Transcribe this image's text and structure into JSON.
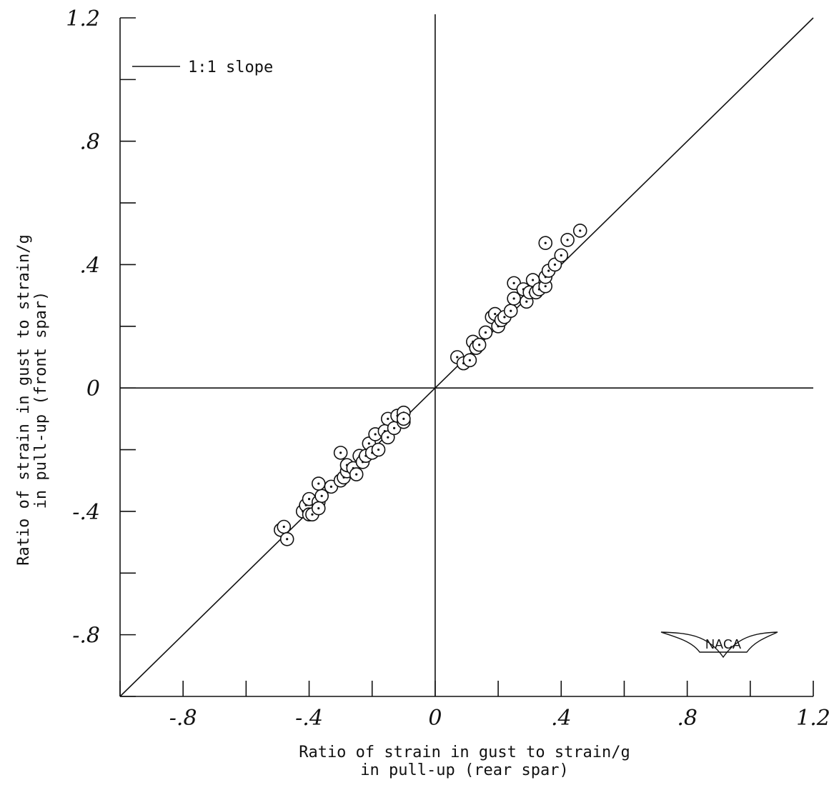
{
  "chart_data": {
    "type": "scatter",
    "title": "",
    "xlabel": [
      "Ratio of strain in gust to strain/g",
      "in pull-up (rear spar)"
    ],
    "ylabel": [
      "Ratio of strain in gust to strain/g",
      "in pull-up (front spar)"
    ],
    "xlim": [
      -1.0,
      1.2
    ],
    "ylim": [
      -1.0,
      1.2
    ],
    "x_ticks": [
      -0.8,
      -0.4,
      0,
      0.4,
      0.8,
      1.2
    ],
    "x_tick_labels": [
      "-.8",
      "-.4",
      "0",
      ".4",
      ".8",
      "1.2"
    ],
    "y_ticks": [
      -0.8,
      -0.4,
      0,
      0.4,
      0.8,
      1.2
    ],
    "y_tick_labels": [
      "-.8",
      "-.4",
      "0",
      ".4",
      ".8",
      "1.2"
    ],
    "minor_tick_step": 0.2,
    "grid": false,
    "reference_line": {
      "label": "1:1 slope",
      "slope": 1,
      "intercept": 0
    },
    "legend": {
      "entries": [
        "1:1 slope"
      ],
      "placement": "top-left"
    },
    "logo_text": "NACA",
    "series": [
      {
        "marker": "circle-with-dot",
        "points": [
          [
            -0.49,
            -0.46
          ],
          [
            -0.48,
            -0.45
          ],
          [
            -0.47,
            -0.49
          ],
          [
            -0.42,
            -0.4
          ],
          [
            -0.41,
            -0.38
          ],
          [
            -0.4,
            -0.36
          ],
          [
            -0.4,
            -0.41
          ],
          [
            -0.39,
            -0.41
          ],
          [
            -0.37,
            -0.37
          ],
          [
            -0.36,
            -0.35
          ],
          [
            -0.37,
            -0.39
          ],
          [
            -0.37,
            -0.31
          ],
          [
            -0.33,
            -0.32
          ],
          [
            -0.3,
            -0.3
          ],
          [
            -0.3,
            -0.21
          ],
          [
            -0.29,
            -0.29
          ],
          [
            -0.28,
            -0.27
          ],
          [
            -0.28,
            -0.25
          ],
          [
            -0.26,
            -0.26
          ],
          [
            -0.25,
            -0.28
          ],
          [
            -0.24,
            -0.22
          ],
          [
            -0.23,
            -0.24
          ],
          [
            -0.22,
            -0.22
          ],
          [
            -0.21,
            -0.18
          ],
          [
            -0.2,
            -0.21
          ],
          [
            -0.19,
            -0.15
          ],
          [
            -0.18,
            -0.2
          ],
          [
            -0.16,
            -0.14
          ],
          [
            -0.15,
            -0.16
          ],
          [
            -0.15,
            -0.1
          ],
          [
            -0.13,
            -0.13
          ],
          [
            -0.12,
            -0.09
          ],
          [
            -0.1,
            -0.11
          ],
          [
            -0.1,
            -0.08
          ],
          [
            -0.1,
            -0.1
          ],
          [
            0.07,
            0.1
          ],
          [
            0.09,
            0.08
          ],
          [
            0.11,
            0.09
          ],
          [
            0.12,
            0.15
          ],
          [
            0.13,
            0.13
          ],
          [
            0.14,
            0.14
          ],
          [
            0.16,
            0.18
          ],
          [
            0.18,
            0.23
          ],
          [
            0.19,
            0.24
          ],
          [
            0.2,
            0.2
          ],
          [
            0.21,
            0.22
          ],
          [
            0.22,
            0.23
          ],
          [
            0.24,
            0.25
          ],
          [
            0.25,
            0.34
          ],
          [
            0.25,
            0.29
          ],
          [
            0.28,
            0.32
          ],
          [
            0.29,
            0.28
          ],
          [
            0.3,
            0.31
          ],
          [
            0.31,
            0.35
          ],
          [
            0.32,
            0.31
          ],
          [
            0.33,
            0.32
          ],
          [
            0.35,
            0.33
          ],
          [
            0.35,
            0.36
          ],
          [
            0.35,
            0.47
          ],
          [
            0.36,
            0.38
          ],
          [
            0.38,
            0.4
          ],
          [
            0.4,
            0.43
          ],
          [
            0.42,
            0.48
          ],
          [
            0.46,
            0.51
          ]
        ]
      }
    ]
  }
}
